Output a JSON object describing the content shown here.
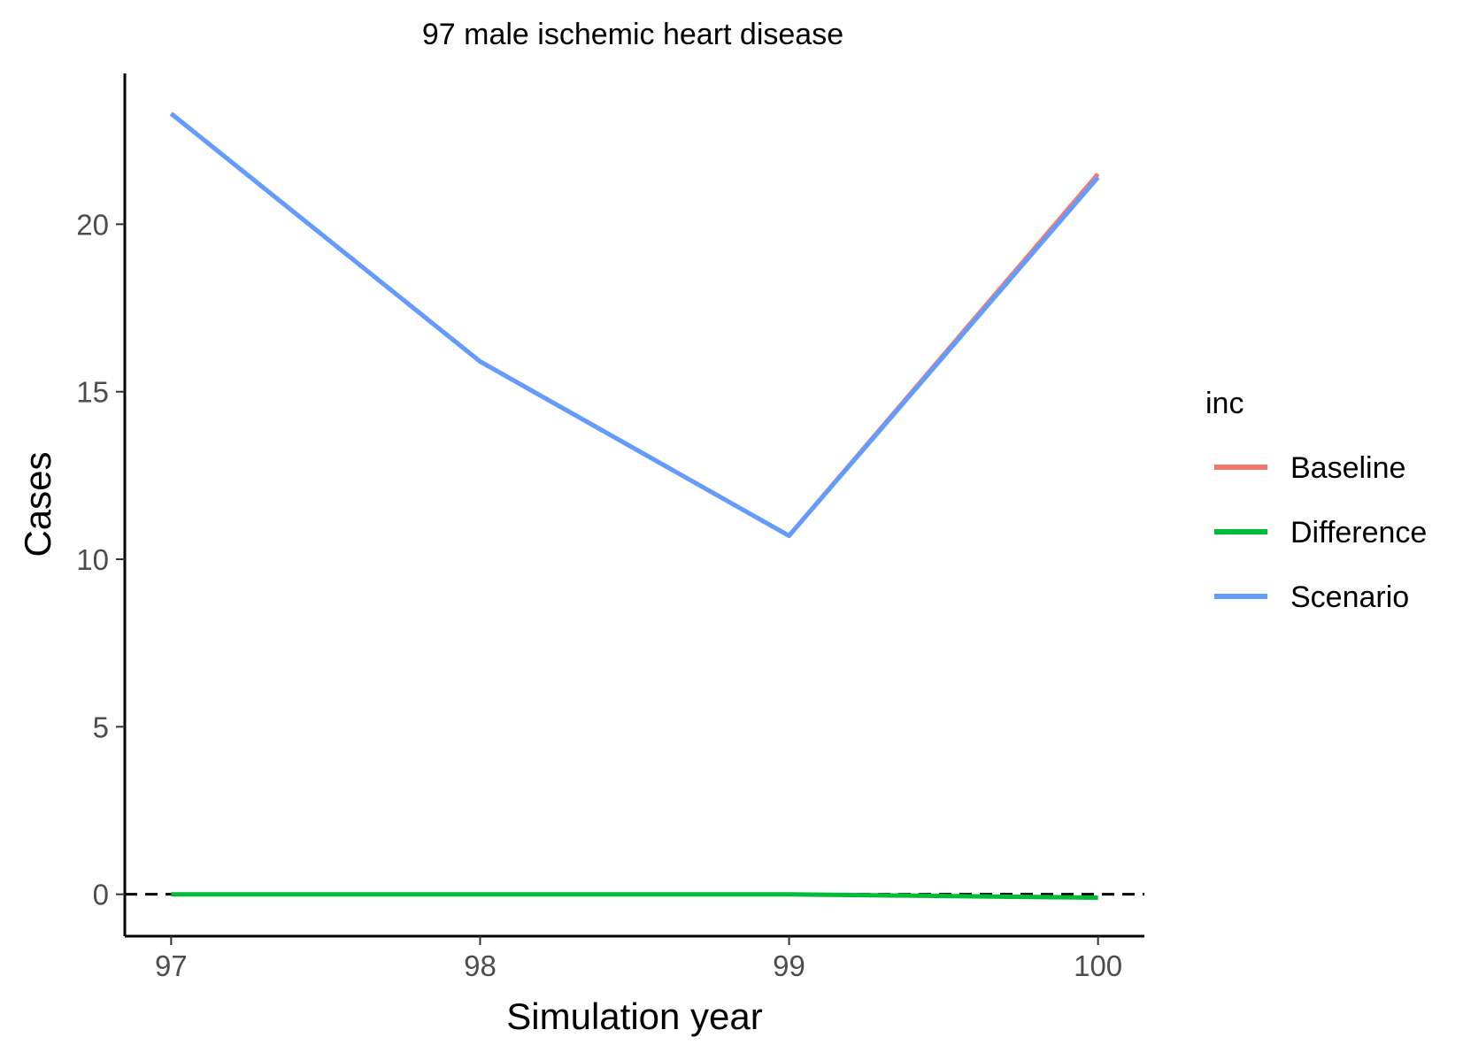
{
  "chart_data": {
    "type": "line",
    "title": "97 male ischemic heart disease",
    "xlabel": "Simulation year",
    "ylabel": "Cases",
    "x": [
      97,
      98,
      99,
      100
    ],
    "x_ticks": [
      "97",
      "98",
      "99",
      "100"
    ],
    "y_ticks": [
      "0",
      "5",
      "10",
      "15",
      "20"
    ],
    "xlim": [
      96.85,
      100.15
    ],
    "ylim": [
      -1.25,
      24.5
    ],
    "grid": false,
    "reference_line": {
      "y": 0,
      "style": "dashed",
      "color": "#000000"
    },
    "legend": {
      "title": "inc",
      "position": "right"
    },
    "series": [
      {
        "name": "Baseline",
        "color": "#F8766D",
        "values": [
          23.3,
          15.9,
          10.7,
          21.5
        ]
      },
      {
        "name": "Difference",
        "color": "#00BA38",
        "values": [
          0.0,
          0.0,
          0.0,
          -0.1
        ]
      },
      {
        "name": "Scenario",
        "color": "#619CFF",
        "values": [
          23.3,
          15.9,
          10.7,
          21.4
        ]
      }
    ]
  }
}
